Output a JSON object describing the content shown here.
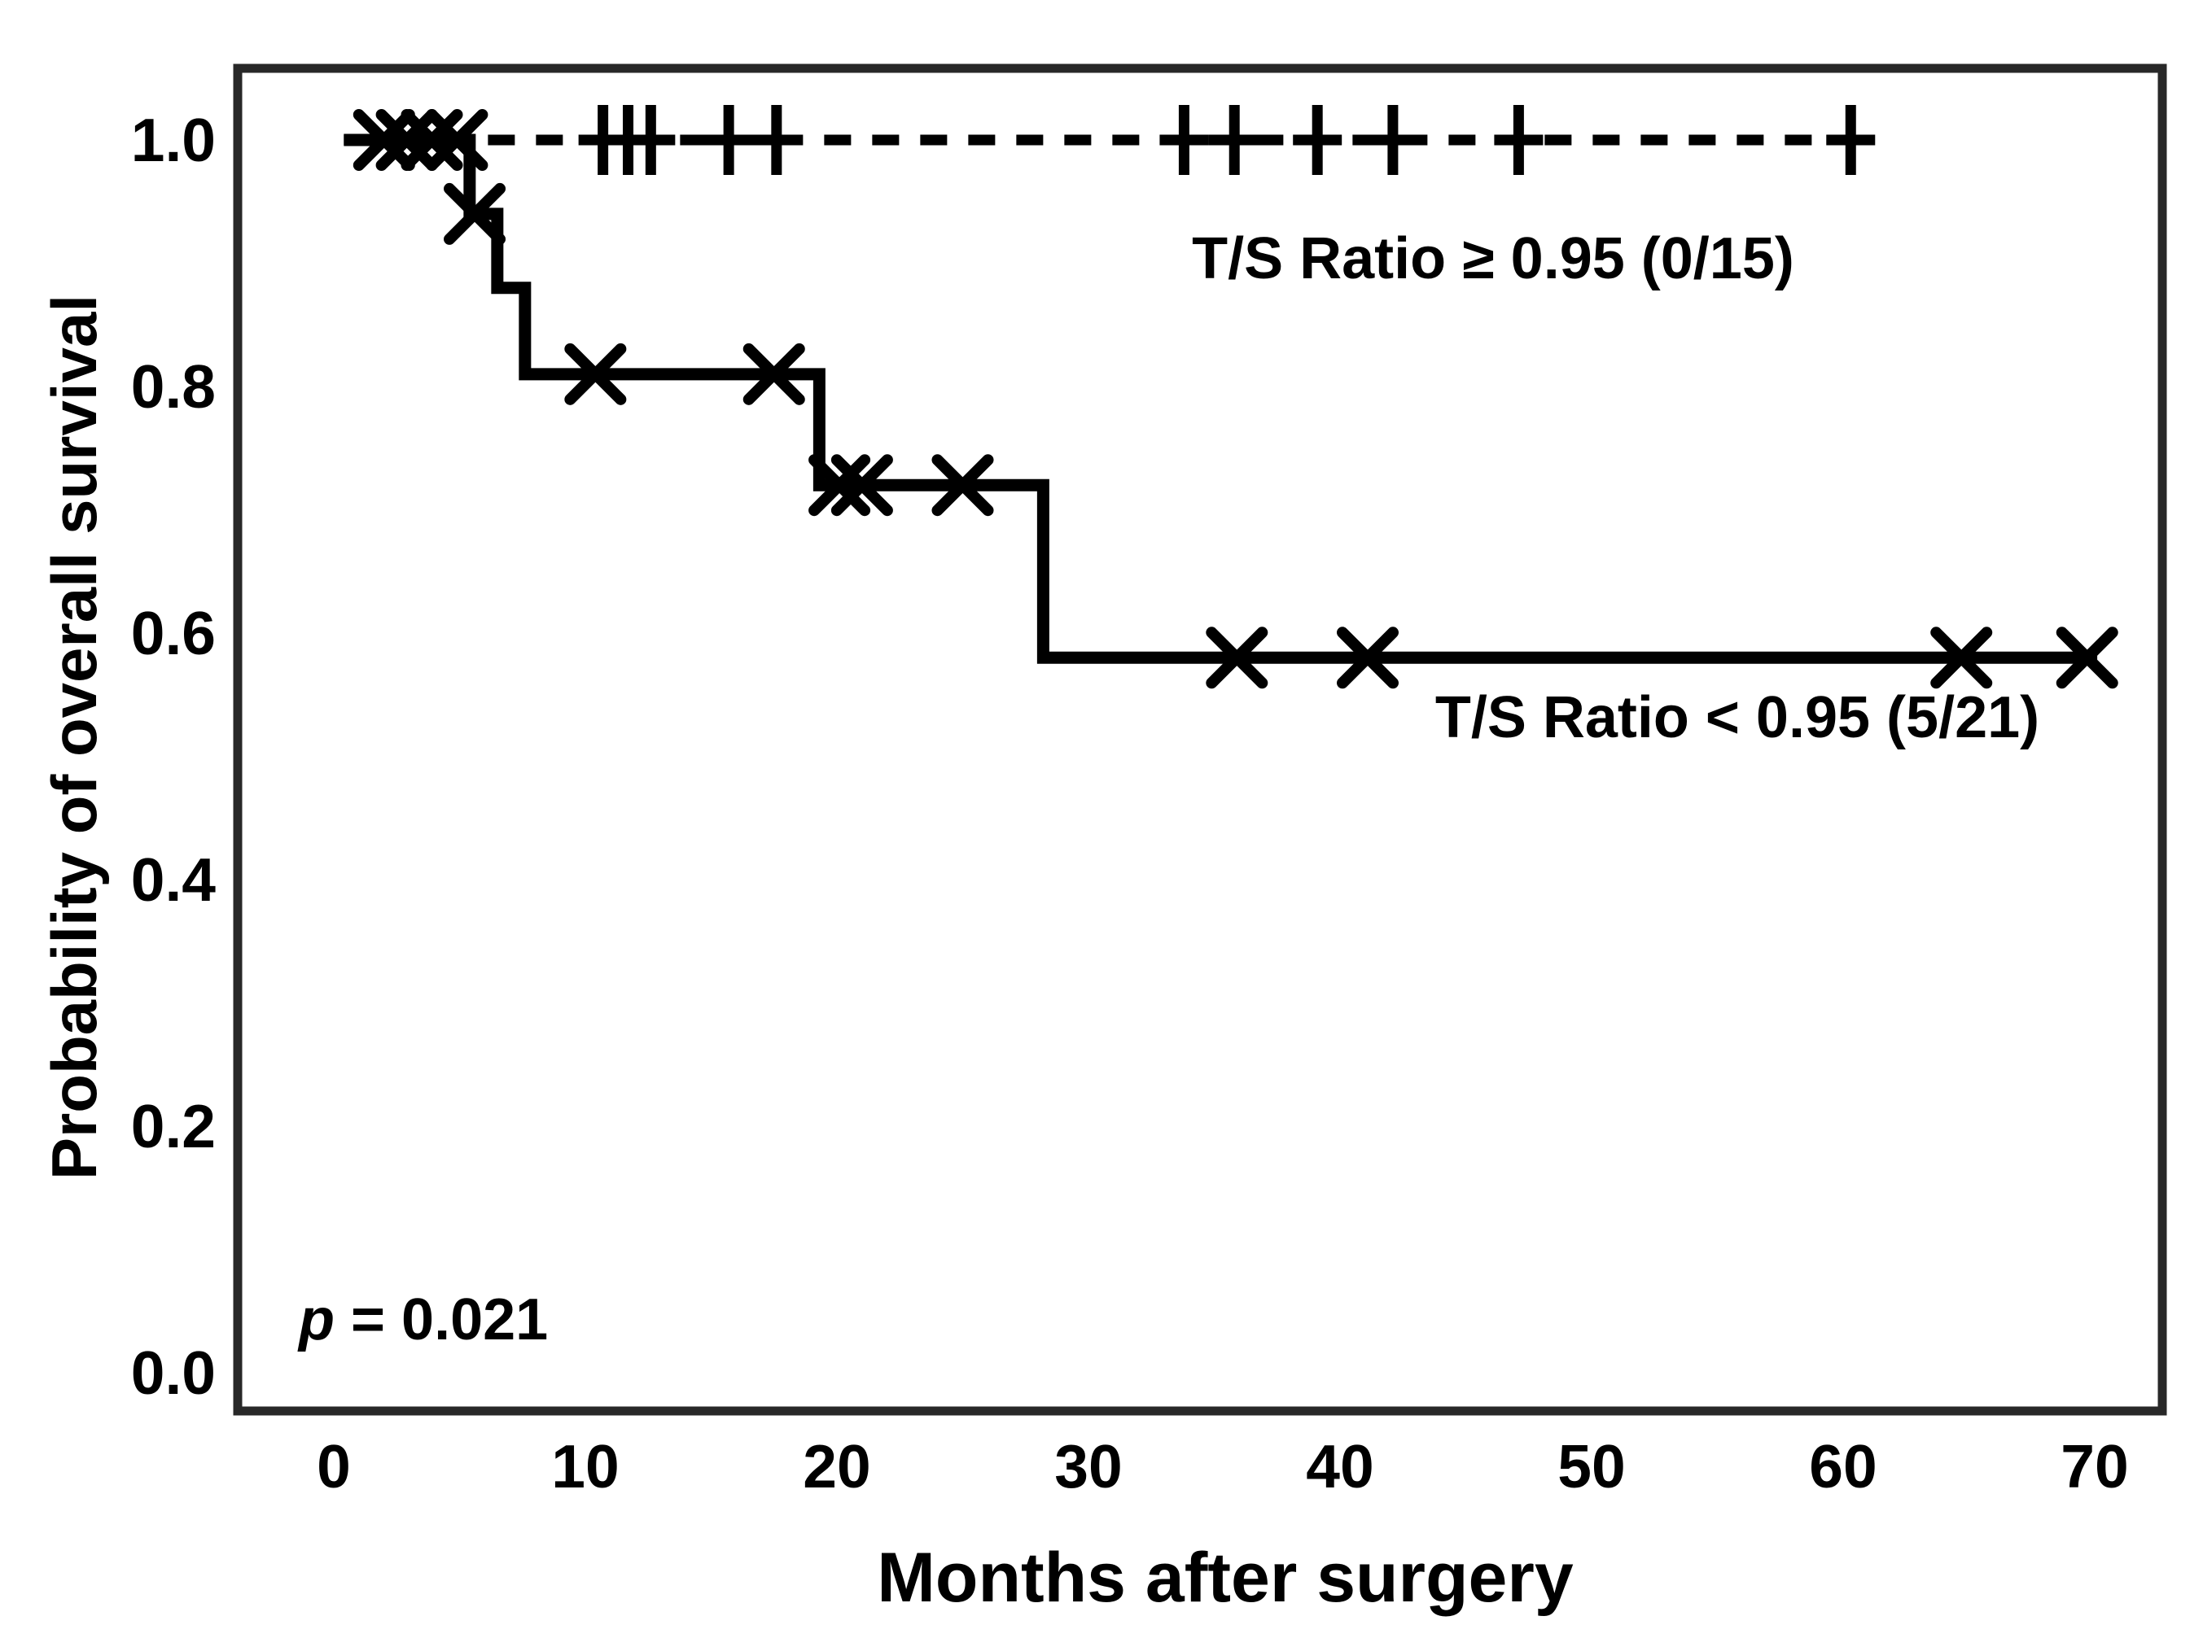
{
  "figure": {
    "x_axis_title": "Months after surgery",
    "y_axis_title": "Probability of overall survival",
    "p_value_italic": "p",
    "p_value_rest": " = 0.021"
  },
  "colors": {
    "curve": "#000000",
    "frame": "#282828",
    "background": "#ffffff"
  },
  "chart_data": {
    "type": "line",
    "subtype": "kaplan-meier-step",
    "title": "",
    "xlabel": "Months after surgery",
    "ylabel": "Probability of overall survival",
    "xlim": [
      0,
      70
    ],
    "ylim": [
      0.0,
      1.0
    ],
    "grid": false,
    "legend_position": "inline-annotations",
    "x_ticks": [
      0,
      10,
      20,
      30,
      40,
      50,
      60,
      70
    ],
    "x_tick_labels": [
      "0",
      "10",
      "20",
      "30",
      "40",
      "50",
      "60",
      "70"
    ],
    "y_ticks": [
      1.0,
      0.8,
      0.6,
      0.4,
      0.2,
      0.0
    ],
    "y_tick_labels": [
      "1.0",
      "0.8",
      "0.6",
      "0.4",
      "0.2",
      "0.0"
    ],
    "series": [
      {
        "name": "T/S Ratio ≥ 0.95 (0/15)",
        "group": "T/S Ratio >= 0.95",
        "events": 0,
        "n": 15,
        "line_style": "dashed",
        "step_points": [
          [
            0.4,
            1.0
          ],
          [
            61.4,
            1.0
          ]
        ],
        "solid_overlap_until_month": 5.4,
        "censor_symbol": "plus",
        "censor_points": [
          [
            10.7,
            1.0
          ],
          [
            11.7,
            1.0
          ],
          [
            12.6,
            1.0
          ],
          [
            15.7,
            1.0
          ],
          [
            17.6,
            1.0
          ],
          [
            33.8,
            1.0
          ],
          [
            35.8,
            1.0
          ],
          [
            39.1,
            1.0
          ],
          [
            42.1,
            1.0
          ],
          [
            47.1,
            1.0
          ],
          [
            60.3,
            1.0
          ]
        ]
      },
      {
        "name": "T/S Ratio < 0.95 (5/21)",
        "group": "T/S Ratio < 0.95",
        "events": 5,
        "n": 21,
        "line_style": "solid",
        "step_points": [
          [
            0.4,
            1.0
          ],
          [
            5.4,
            1.0
          ],
          [
            5.4,
            0.94
          ],
          [
            6.5,
            0.94
          ],
          [
            6.5,
            0.88
          ],
          [
            7.6,
            0.88
          ],
          [
            7.6,
            0.81
          ],
          [
            19.3,
            0.81
          ],
          [
            19.3,
            0.72
          ],
          [
            28.2,
            0.72
          ],
          [
            28.2,
            0.58
          ],
          [
            70.1,
            0.58
          ]
        ],
        "death_times_months": [
          5.4,
          6.5,
          7.6,
          19.3,
          28.2
        ],
        "survival_after_each_death": [
          0.94,
          0.88,
          0.81,
          0.72,
          0.58
        ],
        "censor_symbol": "x",
        "censor_points": [
          [
            2.0,
            1.0
          ],
          [
            2.9,
            1.0
          ],
          [
            3.9,
            1.0
          ],
          [
            4.9,
            1.0
          ],
          [
            5.6,
            0.94
          ],
          [
            10.4,
            0.81
          ],
          [
            17.5,
            0.81
          ],
          [
            20.1,
            0.72
          ],
          [
            21.0,
            0.72
          ],
          [
            25.0,
            0.72
          ],
          [
            35.9,
            0.58
          ],
          [
            41.1,
            0.58
          ],
          [
            64.7,
            0.58
          ],
          [
            69.7,
            0.58
          ]
        ]
      }
    ],
    "annotations": [
      {
        "text": "p = 0.021",
        "x_month": 1.3,
        "y_prob": 0.03
      },
      {
        "text": "T/S Ratio ≥ 0.95 (0/15)",
        "x_month": 46,
        "y_prob": 0.89
      },
      {
        "text": "T/S Ratio < 0.95 (5/21)",
        "x_month": 55.8,
        "y_prob": 0.52
      }
    ]
  }
}
